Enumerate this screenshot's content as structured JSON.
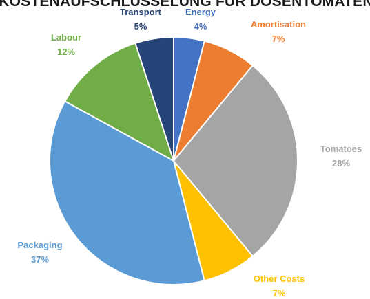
{
  "chart_data": {
    "type": "pie",
    "title": "KOSTENAUFSCHLÜSSELUNG FÜR DOSENTOMATEN",
    "slices": [
      {
        "name": "Energy",
        "value": 4,
        "label": "4%",
        "color": "#4472c4"
      },
      {
        "name": "Amortisation",
        "value": 7,
        "label": "7%",
        "color": "#ed7d31"
      },
      {
        "name": "Tomatoes",
        "value": 28,
        "label": "28%",
        "color": "#a5a5a5"
      },
      {
        "name": "Other Costs",
        "value": 7,
        "label": "7%",
        "color": "#ffc000"
      },
      {
        "name": "Packaging",
        "value": 37,
        "label": "37%",
        "color": "#5b9bd5"
      },
      {
        "name": "Labour",
        "value": 12,
        "label": "12%",
        "color": "#70ad47"
      },
      {
        "name": "Transport",
        "value": 5,
        "label": "5%",
        "color": "#264478"
      }
    ]
  }
}
